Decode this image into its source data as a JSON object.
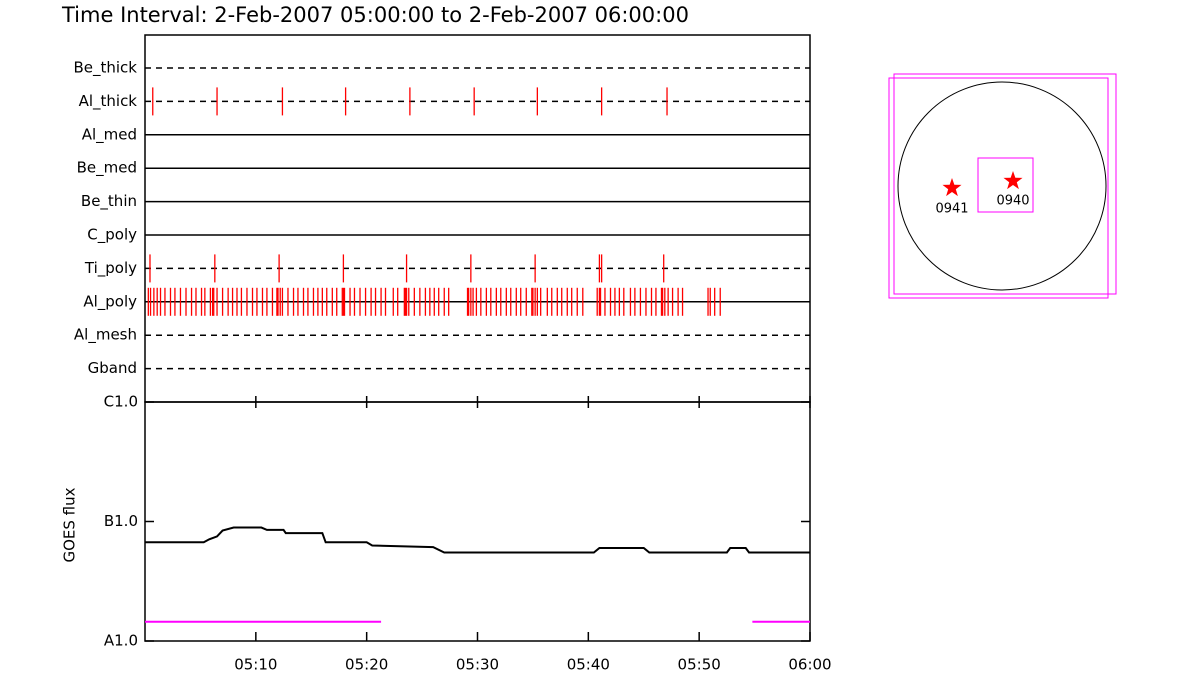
{
  "chart_data": [
    {
      "type": "timeline",
      "title": "Time Interval:  2-Feb-2007 05:00:00 to  2-Feb-2007 06:00:00",
      "xlim": [
        0,
        60
      ],
      "event_color": "#ff0000",
      "series": [
        {
          "name": "Be_thick",
          "style": "dashed",
          "values": []
        },
        {
          "name": "Al_thick",
          "style": "dashed",
          "values": [
            0.7,
            6.5,
            12.4,
            18.1,
            23.9,
            29.7,
            35.4,
            41.2,
            47.1
          ]
        },
        {
          "name": "Al_med",
          "style": "solid",
          "values": []
        },
        {
          "name": "Be_med",
          "style": "solid",
          "values": []
        },
        {
          "name": "Be_thin",
          "style": "solid",
          "values": []
        },
        {
          "name": "C_poly",
          "style": "solid",
          "values": []
        },
        {
          "name": "Ti_poly",
          "style": "dashed",
          "values": [
            0.45,
            6.3,
            12.1,
            17.9,
            23.6,
            29.4,
            35.2,
            41.0,
            41.2,
            46.8
          ]
        },
        {
          "name": "Al_poly",
          "style": "solid",
          "values": [
            0.3,
            0.5,
            0.8,
            1.1,
            1.4,
            1.8,
            2.3,
            2.7,
            3.2,
            3.7,
            4.2,
            4.6,
            5.1,
            5.4,
            5.9,
            6.1,
            6.2,
            6.5,
            7.0,
            7.5,
            7.9,
            8.3,
            8.7,
            9.2,
            9.7,
            10.1,
            10.6,
            11.0,
            11.5,
            11.9,
            12.0,
            12.2,
            12.4,
            12.9,
            13.4,
            13.8,
            14.3,
            14.7,
            15.2,
            15.6,
            16.0,
            16.4,
            16.9,
            17.3,
            17.8,
            17.9,
            18.0,
            18.5,
            18.9,
            19.4,
            19.9,
            20.4,
            20.8,
            21.3,
            21.7,
            22.4,
            22.8,
            23.4,
            23.5,
            23.6,
            23.8,
            24.3,
            24.8,
            25.3,
            25.7,
            26.1,
            26.5,
            27.0,
            27.4,
            29.1,
            29.2,
            29.4,
            29.6,
            29.9,
            30.3,
            30.8,
            31.2,
            31.7,
            32.1,
            32.6,
            33.0,
            33.5,
            33.9,
            34.4,
            34.9,
            35.0,
            35.2,
            35.4,
            35.7,
            36.3,
            36.7,
            37.2,
            37.6,
            38.1,
            38.5,
            39.0,
            39.5,
            40.8,
            41.0,
            41.1,
            41.5,
            42.0,
            42.4,
            42.8,
            43.2,
            43.8,
            44.2,
            44.7,
            45.2,
            45.7,
            46.1,
            46.6,
            46.7,
            46.9,
            47.2,
            47.6,
            48.1,
            48.5,
            50.8,
            51.0,
            51.4,
            51.9
          ]
        },
        {
          "name": "Al_mesh",
          "style": "dashed",
          "values": []
        },
        {
          "name": "Gband",
          "style": "dashed",
          "values": []
        }
      ]
    },
    {
      "type": "line",
      "ylabel": "GOES flux",
      "log_y": true,
      "xlim": [
        0,
        60
      ],
      "ylim": [
        1e-08,
        1e-06
      ],
      "xticks": [
        {
          "value": 10,
          "label": "05:10"
        },
        {
          "value": 20,
          "label": "05:20"
        },
        {
          "value": 30,
          "label": "05:30"
        },
        {
          "value": 40,
          "label": "05:40"
        },
        {
          "value": 50,
          "label": "05:50"
        },
        {
          "value": 60,
          "label": "06:00"
        }
      ],
      "yticks": [
        {
          "value": 1e-08,
          "label": "A1.0"
        },
        {
          "value": 1e-07,
          "label": "B1.0"
        },
        {
          "value": 1e-06,
          "label": "C1.0"
        }
      ],
      "series": [
        {
          "color": "#000000",
          "x": [
            0,
            5.3,
            5.8,
            6.5,
            7,
            8,
            10.5,
            11,
            12.5,
            12.7,
            16,
            16.3,
            20,
            20.5,
            26,
            27,
            40.5,
            41,
            45,
            45.5,
            52.5,
            52.8,
            54.2,
            54.5,
            60
          ],
          "values": [
            6.7e-08,
            6.7e-08,
            7.1e-08,
            7.5e-08,
            8.4e-08,
            8.9e-08,
            8.9e-08,
            8.5e-08,
            8.5e-08,
            8e-08,
            8e-08,
            6.7e-08,
            6.7e-08,
            6.3e-08,
            6.1e-08,
            5.5e-08,
            5.5e-08,
            6e-08,
            6e-08,
            5.5e-08,
            5.5e-08,
            6e-08,
            6e-08,
            5.5e-08,
            5.5e-08
          ]
        },
        {
          "color": "#ff00ff",
          "x": [
            0,
            21.3
          ],
          "values": [
            1.45e-08,
            1.45e-08
          ]
        },
        {
          "color": "#ff00ff",
          "x": [
            54.8,
            60
          ],
          "values": [
            1.45e-08,
            1.45e-08
          ]
        }
      ]
    }
  ],
  "map": {
    "labels": [
      "0941",
      "0940"
    ]
  }
}
